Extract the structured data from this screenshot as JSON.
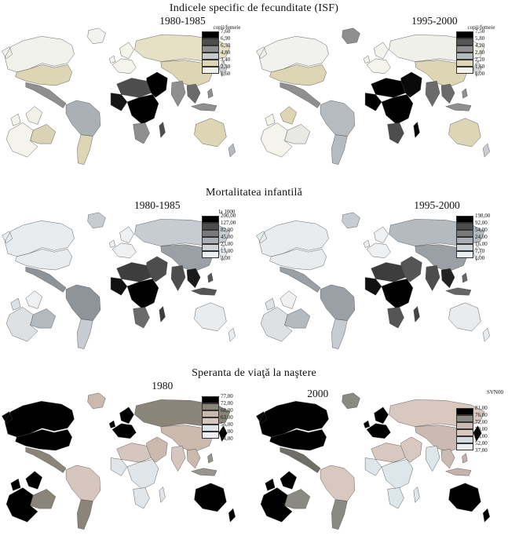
{
  "sections": [
    {
      "title": "Indicele specific de fecunditate (ISF)"
    },
    {
      "title": "Mortalitatea infantilă"
    },
    {
      "title": "Speranta de viaţă la naştere"
    }
  ],
  "maps": [
    {
      "subtitle": "1980-1985",
      "legend": {
        "header": "copii/femeie",
        "labels": [
          "7,60",
          "6,90",
          "6,30",
          "4,80",
          "3,40",
          "2,30",
          "1,60"
        ],
        "swatches": [
          "#000000",
          "#4d4d4d",
          "#8f8f8f",
          "#c6cacd",
          "#ddd5b4",
          "#f2f1ea"
        ]
      },
      "regions": {
        "greenland": "#f2f2ef",
        "canada": "#f2f2ec",
        "usa": "#ddd5b4",
        "mexico": "#8f8f8f",
        "samerica_n": "#aab0b5",
        "samerica_s": "#ddd5b4",
        "europe": "#f4f3ec",
        "inset_north": "#f2f1e8",
        "inset_west": "#f4f3ec",
        "inset_east": "#d9d2b4",
        "russia": "#e6e0c6",
        "china": "#ddd5b4",
        "mideast": "#000000",
        "india": "#8f8f8f",
        "nafrica": "#4d4d4d",
        "wafrica": "#151515",
        "cafrica": "#000000",
        "safrica": "#8f8f8f",
        "madagascar": "#4d4d4d",
        "seasia": "#6b6b6b",
        "indonesia": "#8f8f8f",
        "japan": "#c9cdd1",
        "australia": "#ddd5b4",
        "newzealand": "#b6bbc0"
      }
    },
    {
      "subtitle": "1995-2000",
      "legend": {
        "header": "copii/femeie",
        "labels": [
          "7,50",
          "5,80",
          "4,20",
          "2,80",
          "2,20",
          "1,60",
          "1,00"
        ],
        "swatches": [
          "#000000",
          "#555555",
          "#8f8f8f",
          "#b6bbc0",
          "#ddd5b4",
          "#f4f3ec"
        ]
      },
      "regions": {
        "greenland": "#8f8f8f",
        "canada": "#f1f1ee",
        "usa": "#ddd5b4",
        "mexico": "#8f8f8f",
        "samerica_n": "#b6bbc0",
        "samerica_s": "#b6bbc0",
        "europe": "#f4f3ec",
        "inset_north": "#ddd5b4",
        "inset_west": "#f4f3ec",
        "inset_east": "#e8e8e4",
        "russia": "#f0f0ea",
        "china": "#ddd5b4",
        "mideast": "#0a0a0a",
        "india": "#6b6b6b",
        "nafrica": "#000000",
        "wafrica": "#000000",
        "cafrica": "#000000",
        "safrica": "#4d4d4d",
        "madagascar": "#000000",
        "seasia": "#6b6b6b",
        "indonesia": "#8f8f8f",
        "japan": "#d3d7da",
        "australia": "#ddd5b4",
        "newzealand": "#c9cdd1"
      }
    },
    {
      "subtitle": "1980-1985",
      "legend": {
        "header": "la 1000",
        "labels": [
          "200,00",
          "127,00",
          "82,00",
          "45,00",
          "23,00",
          "15,00",
          "3,00"
        ],
        "swatches": [
          "#000000",
          "#4d4d4d",
          "#7a7a7a",
          "#a8aeb3",
          "#ced4d8",
          "#ebeef0"
        ]
      },
      "regions": {
        "greenland": "#c6ccd1",
        "canada": "#e8ecef",
        "usa": "#e8ecef",
        "mexico": "#8f9499",
        "samerica_n": "#8f9499",
        "samerica_s": "#c6ccd1",
        "europe": "#eef0f2",
        "inset_north": "#eef0f2",
        "inset_west": "#dde1e4",
        "inset_east": "#b3bac0",
        "russia": "#c6ccd1",
        "china": "#9aa0a5",
        "mideast": "#4d4d4d",
        "india": "#4d4d4d",
        "nafrica": "#3d3d3d",
        "wafrica": "#111111",
        "cafrica": "#000000",
        "safrica": "#6b6b6b",
        "madagascar": "#3d3d3d",
        "seasia": "#1a1a1a",
        "indonesia": "#555555",
        "japan": "#e8ecef",
        "australia": "#e8ecef",
        "newzealand": "#e8ecef"
      }
    },
    {
      "subtitle": "1995-2000",
      "legend": {
        "header": "",
        "labels": [
          "198,00",
          "92,00",
          "54,00",
          "24,00",
          "16,00",
          "7,70",
          "1,00"
        ],
        "swatches": [
          "#000000",
          "#4d4d4d",
          "#7a7a7a",
          "#a8aeb3",
          "#ced4d8",
          "#ebeef0"
        ]
      },
      "regions": {
        "greenland": "#c6ccd1",
        "canada": "#e8ecef",
        "usa": "#e8ecef",
        "mexico": "#9aa0a5",
        "samerica_n": "#9aa0a5",
        "samerica_s": "#c6ccd1",
        "europe": "#eef0f2",
        "inset_north": "#eef0f2",
        "inset_west": "#dde1e4",
        "inset_east": "#b3bac0",
        "russia": "#b3bac0",
        "china": "#9aa0a5",
        "mideast": "#555555",
        "india": "#4d4d4d",
        "nafrica": "#3d3d3d",
        "wafrica": "#111111",
        "cafrica": "#000000",
        "safrica": "#555555",
        "madagascar": "#444444",
        "seasia": "#222222",
        "indonesia": "#666666",
        "japan": "#e8ecef",
        "australia": "#e8ecef",
        "newzealand": "#e8ecef"
      }
    },
    {
      "subtitle": "1980",
      "legend": {
        "header": "",
        "labels": [
          "77,00",
          "72,00",
          "68,00",
          "63,00",
          "56,00",
          "48,00",
          "34,00"
        ],
        "swatches": [
          "#000000",
          "#8a8578",
          "#cbb9ae",
          "#d6c6be",
          "#dfe5e8",
          "#eef1f3"
        ]
      },
      "regions": {
        "greenland": "#cbb9ae",
        "canada": "#000000",
        "usa": "#000000",
        "mexico": "#8a8578",
        "samerica_n": "#d6c6be",
        "samerica_s": "#8a8578",
        "europe": "#000000",
        "inset_north": "#000000",
        "inset_west": "#000000",
        "inset_east": "#8a8578",
        "russia": "#8a8578",
        "china": "#cbb9ae",
        "mideast": "#cbb9ae",
        "india": "#d6c6be",
        "nafrica": "#d6c6be",
        "wafrica": "#dfe5e8",
        "cafrica": "#dfe5e8",
        "safrica": "#dfe5e8",
        "madagascar": "#dfe5e8",
        "seasia": "#cbb9ae",
        "indonesia": "#9a958c",
        "japan": "#000000",
        "australia": "#000000",
        "newzealand": "#000000"
      }
    },
    {
      "subtitle": "2000",
      "legend": {
        "header": "SVN00",
        "labels": [
          "81,00",
          "76,00",
          "72,00",
          "70,00",
          "66,00",
          "52,00",
          "37,00"
        ],
        "swatches": [
          "#000000",
          "#8a8a82",
          "#cbbab1",
          "#d8c8c0",
          "#d3dbdf",
          "#e9edf0"
        ]
      },
      "regions": {
        "greenland": "#8a8a82",
        "canada": "#000000",
        "usa": "#000000",
        "mexico": "#6e6e66",
        "samerica_n": "#d8c8c0",
        "samerica_s": "#8a8a82",
        "europe": "#000000",
        "inset_north": "#000000",
        "inset_west": "#000000",
        "inset_east": "#8a8a82",
        "russia": "#d8c8c0",
        "china": "#cbbab1",
        "mideast": "#d8c8c0",
        "india": "#dde6ea",
        "nafrica": "#d8c8c0",
        "wafrica": "#dde6ea",
        "cafrica": "#dde6ea",
        "safrica": "#dde6ea",
        "madagascar": "#dde6ea",
        "seasia": "#cbbab1",
        "indonesia": "#c3b3aa",
        "japan": "#000000",
        "australia": "#000000",
        "newzealand": "#000000"
      }
    }
  ]
}
